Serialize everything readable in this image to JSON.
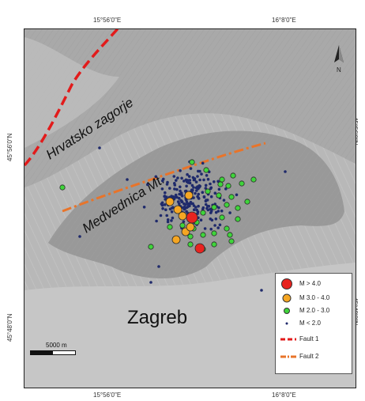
{
  "map": {
    "place_labels": {
      "region": "Hrvatsko zagorje",
      "mountain": "Medvednica Mt.",
      "city": "Zagreb"
    },
    "coordinates": {
      "top_left": "15°56'0\"E",
      "top_right": "16°8'0\"E",
      "bottom_left": "15°56'0\"E",
      "bottom_right": "16°8'0\"E",
      "left_upper": "45°56'0\"N",
      "left_lower": "45°48'0\"N",
      "right_upper": "45°56'0\"N",
      "right_lower": "45°48'0\"N"
    },
    "north_arrow_label": "N",
    "scale_bar_label": "5000 m",
    "colors": {
      "m_gt_4": "#e8231f",
      "m_3_4": "#f5a623",
      "m_2_3": "#3fd43b",
      "m_lt_2": "#1f2a6b",
      "fault1": "#e21b1b",
      "fault2": "#e8742a"
    }
  },
  "legend": {
    "items": [
      {
        "label": "M > 4.0",
        "symbol": "large-red-circle"
      },
      {
        "label": "M 3.0 - 4.0",
        "symbol": "orange-circle"
      },
      {
        "label": "M 2.0 - 3.0",
        "symbol": "green-circle"
      },
      {
        "label": "M < 2.0",
        "symbol": "small-dark-blue-dot"
      },
      {
        "label": "Fault 1",
        "symbol": "red-dashed-line"
      },
      {
        "label": "Fault 2",
        "symbol": "orange-dash-dot-line"
      }
    ]
  }
}
